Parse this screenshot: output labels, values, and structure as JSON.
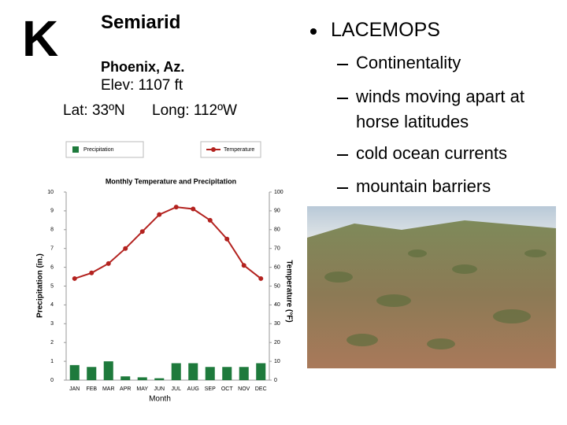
{
  "header": {
    "letter": "K",
    "title": "Semiarid",
    "location": "Phoenix, Az.",
    "elevation": "Elev: 1107 ft",
    "latitude": "Lat: 33ºN",
    "longitude": "Long: 112ºW"
  },
  "bullets": {
    "main": "LACEMOPS",
    "items": [
      "Continentality",
      "winds moving apart at horse latitudes",
      "cold ocean currents",
      "mountain barriers"
    ]
  },
  "chart_data": {
    "type": "bar",
    "title": "Monthly Temperature and Precipitation",
    "x_label": "Month",
    "y_label": "Precipitation (in.)",
    "y2_label": "Temperature (°F)",
    "categories": [
      "JAN",
      "FEB",
      "MAR",
      "APR",
      "MAY",
      "JUN",
      "JUL",
      "AUG",
      "SEP",
      "OCT",
      "NOV",
      "DEC"
    ],
    "series": [
      {
        "name": "Precipitation",
        "type": "bar",
        "color": "#1e7a3c",
        "values": [
          0.8,
          0.7,
          1.0,
          0.2,
          0.15,
          0.1,
          0.9,
          0.9,
          0.7,
          0.7,
          0.7,
          0.9
        ]
      },
      {
        "name": "Temperature",
        "type": "line",
        "axis": "y2",
        "color": "#b3221f",
        "values": [
          54,
          57,
          62,
          70,
          79,
          88,
          92,
          91,
          85,
          75,
          61,
          54
        ]
      }
    ],
    "ylim": [
      0,
      10
    ],
    "yticks": [
      0,
      1,
      2,
      3,
      4,
      5,
      6,
      7,
      8,
      9,
      10
    ],
    "y2lim": [
      0,
      100
    ],
    "y2ticks": [
      0,
      10,
      20,
      30,
      40,
      50,
      60,
      70,
      80,
      90,
      100
    ]
  }
}
